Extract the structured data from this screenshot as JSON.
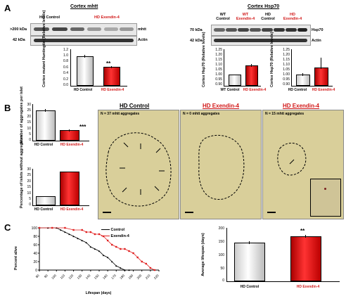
{
  "panels": {
    "a": "A",
    "b": "B",
    "c": "C"
  },
  "panelA": {
    "mhtt_title": "Cortex mhtt",
    "hsp_title": "Cortex Hsp70",
    "blot1": {
      "hd_control": "HD Control",
      "hd_exendin": "HD Exendin-4",
      "kda1": ">200 kDa",
      "kda2": "42 kDa",
      "lbl1": "mhtt",
      "lbl2": "Actin"
    },
    "blot2": {
      "wt_control": "WT Control",
      "wt_exendin": "WT Exendin-4",
      "hd_control": "HD Control",
      "hd_exendin": "HD Exendin-4",
      "kda1": "70 kDa",
      "kda2": "42 kDa",
      "lbl1": "Hsp70",
      "lbl2": "Actin"
    },
    "mhtt_chart": {
      "ylabel": "Cortex mutant Huntingtin (Relative levels)",
      "ticks": [
        "1.2",
        "1.0",
        "0.8",
        "0.6",
        "0.4",
        "0.2",
        "0.0"
      ],
      "cat1": "HD Control",
      "cat2": "HD Exendin-4",
      "star": "**"
    },
    "wt_chart": {
      "ylabel": "Cortex Hsp70 (Relative levels)",
      "ticks": [
        "1.25",
        "1.20",
        "1.15",
        "1.10",
        "1.05",
        "1.00",
        "0.95",
        "0.90"
      ],
      "cat1": "WT Control",
      "cat2": "HD Exendin-4"
    },
    "hd_chart": {
      "ylabel": "Cortex Hsp70 (Relative levels)",
      "ticks": [
        "1.25",
        "1.20",
        "1.15",
        "1.10",
        "1.05",
        "1.00",
        "0.95",
        "0.90"
      ],
      "cat1": "HD Control",
      "cat2": "HD Exendin-4"
    }
  },
  "panelB": {
    "agg_chart": {
      "ylabel": "Number of aggregates per islet",
      "ticks": [
        "30",
        "25",
        "20",
        "15",
        "10",
        "5",
        "0"
      ],
      "cat1": "HD Control",
      "cat2": "HD Exendin-4",
      "star": "***"
    },
    "pct_chart": {
      "ylabel": "Percentage of islets without aggregates",
      "ticks": [
        "30",
        "25",
        "20",
        "15",
        "10",
        "5",
        "0"
      ],
      "cat1": "HD Control",
      "cat2": "HD Exendin-4"
    },
    "img_titles": [
      "HD Control",
      "HD Exendin-4",
      "HD Exendin-4"
    ],
    "img_labels": [
      "N = 37 mhtt aggregates",
      "N = 0 mhtt aggregates",
      "N = 15 mhtt aggregates"
    ]
  },
  "panelC": {
    "survival": {
      "ylabel": "Percent alive",
      "xlabel": "Lifespan (days)",
      "legend1": "Control",
      "legend2": "Exendin-4",
      "yticks": [
        "100",
        "80",
        "60",
        "40",
        "20",
        "0"
      ],
      "xticks": [
        "80",
        "90",
        "100",
        "110",
        "120",
        "130",
        "140",
        "150",
        "160",
        "170",
        "180",
        "190",
        "200",
        "210",
        "220"
      ]
    },
    "lifespan": {
      "ylabel": "Average lifespan (days)",
      "ticks": [
        "200",
        "150",
        "100",
        "50",
        "0"
      ],
      "cat1": "HD Control",
      "cat2": "HD Exendin-4",
      "star": "**"
    }
  },
  "chart_data": [
    {
      "type": "bar",
      "categories": [
        "HD Control",
        "HD Exendin-4"
      ],
      "values": [
        1.0,
        0.62
      ],
      "ylabel": "Cortex mutant Huntingtin (Relative levels)",
      "ylim": [
        0,
        1.2
      ]
    },
    {
      "type": "bar",
      "categories": [
        "WT Control",
        "HD Exendin-4"
      ],
      "values": [
        1.0,
        1.09
      ],
      "ylabel": "Cortex Hsp70 (Relative levels)",
      "ylim": [
        0.9,
        1.25
      ]
    },
    {
      "type": "bar",
      "categories": [
        "HD Control",
        "HD Exendin-4"
      ],
      "values": [
        1.0,
        1.07
      ],
      "ylabel": "Cortex Hsp70 (Relative levels)",
      "ylim": [
        0.9,
        1.25
      ]
    },
    {
      "type": "bar",
      "categories": [
        "HD Control",
        "HD Exendin-4"
      ],
      "values": [
        24,
        8
      ],
      "ylabel": "Number of aggregates per islet",
      "ylim": [
        0,
        30
      ]
    },
    {
      "type": "bar",
      "categories": [
        "HD Control",
        "HD Exendin-4"
      ],
      "values": [
        7,
        27
      ],
      "ylabel": "Percentage of islets without aggregates",
      "ylim": [
        0,
        30
      ]
    },
    {
      "type": "line",
      "xlabel": "Lifespan (days)",
      "ylabel": "Percent alive",
      "series": [
        {
          "name": "Control",
          "x": [
            80,
            90,
            100,
            105,
            110,
            115,
            120,
            125,
            130,
            135,
            140,
            145,
            150,
            155,
            160,
            165,
            170,
            175,
            180,
            185
          ],
          "y": [
            100,
            100,
            100,
            95,
            90,
            85,
            80,
            75,
            70,
            65,
            55,
            50,
            45,
            35,
            30,
            20,
            10,
            5,
            0,
            0
          ]
        },
        {
          "name": "Exendin-4",
          "x": [
            80,
            95,
            110,
            120,
            130,
            135,
            140,
            145,
            150,
            155,
            160,
            165,
            170,
            175,
            180,
            185,
            190,
            195,
            200,
            205,
            210,
            215
          ],
          "y": [
            100,
            100,
            100,
            95,
            95,
            90,
            90,
            85,
            85,
            80,
            70,
            60,
            55,
            50,
            50,
            45,
            40,
            30,
            20,
            15,
            5,
            0
          ]
        }
      ],
      "xlim": [
        80,
        220
      ],
      "ylim": [
        0,
        100
      ]
    },
    {
      "type": "bar",
      "categories": [
        "HD Control",
        "HD Exendin-4"
      ],
      "values": [
        140,
        165
      ],
      "ylabel": "Average lifespan (days)",
      "ylim": [
        0,
        200
      ]
    }
  ]
}
